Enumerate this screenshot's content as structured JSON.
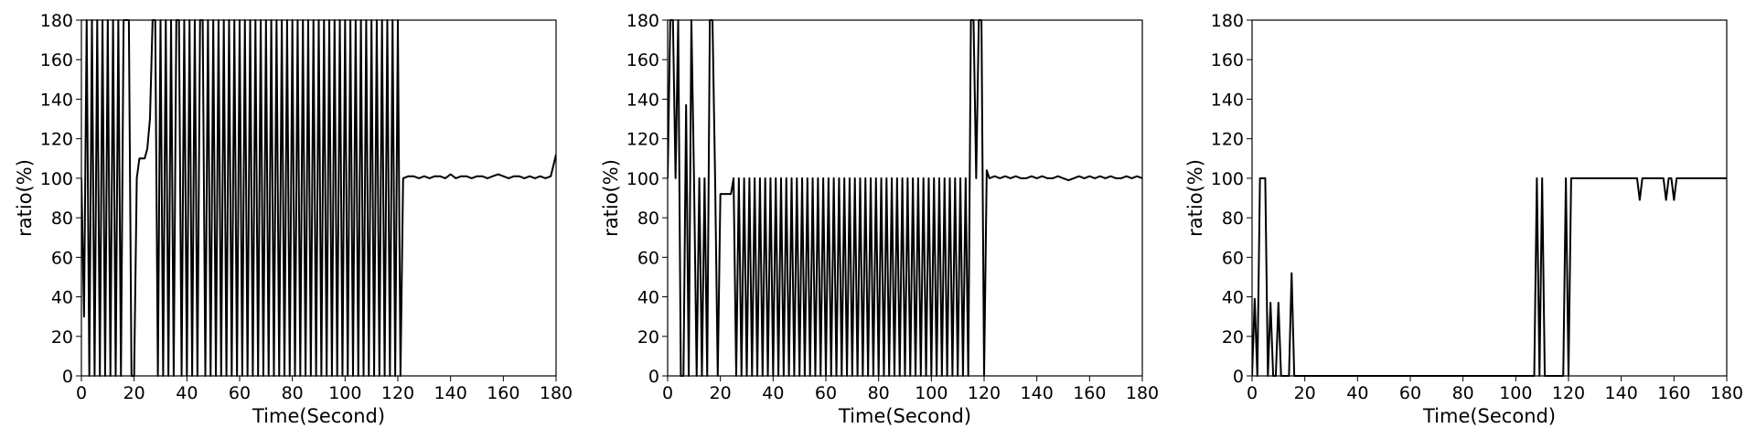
{
  "chart_data": [
    {
      "type": "line",
      "xlabel": "Time(Second)",
      "ylabel": "ratio(%)",
      "x": [
        0,
        1,
        2,
        3,
        4,
        5,
        6,
        7,
        8,
        9,
        10,
        11,
        12,
        13,
        14,
        15,
        16,
        17,
        18,
        19,
        20,
        21,
        22,
        23,
        24,
        25,
        26,
        27,
        28,
        29,
        30,
        31,
        32,
        33,
        34,
        35,
        36,
        37,
        38,
        39,
        40,
        41,
        42,
        43,
        44,
        45,
        46,
        47,
        48,
        49,
        50,
        51,
        52,
        53,
        54,
        55,
        56,
        57,
        58,
        59,
        60,
        61,
        62,
        63,
        64,
        65,
        66,
        67,
        68,
        69,
        70,
        71,
        72,
        73,
        74,
        75,
        76,
        77,
        78,
        79,
        80,
        81,
        82,
        83,
        84,
        85,
        86,
        87,
        88,
        89,
        90,
        91,
        92,
        93,
        94,
        95,
        96,
        97,
        98,
        99,
        100,
        101,
        102,
        103,
        104,
        105,
        106,
        107,
        108,
        109,
        110,
        111,
        112,
        113,
        114,
        115,
        116,
        117,
        118,
        119,
        120,
        121,
        122,
        124,
        126,
        128,
        130,
        132,
        134,
        136,
        138,
        140,
        142,
        144,
        146,
        148,
        150,
        152,
        154,
        156,
        158,
        160,
        162,
        164,
        166,
        168,
        170,
        172,
        174,
        176,
        178,
        180
      ],
      "values": [
        100,
        30,
        180,
        0,
        180,
        0,
        180,
        0,
        180,
        0,
        180,
        0,
        180,
        0,
        180,
        0,
        180,
        180,
        180,
        0,
        0,
        100,
        110,
        110,
        110,
        115,
        130,
        180,
        180,
        0,
        180,
        0,
        180,
        0,
        180,
        0,
        180,
        180,
        0,
        180,
        0,
        180,
        0,
        180,
        0,
        180,
        180,
        0,
        180,
        0,
        180,
        0,
        180,
        0,
        180,
        0,
        180,
        0,
        180,
        0,
        180,
        0,
        180,
        0,
        180,
        0,
        180,
        0,
        180,
        0,
        180,
        0,
        180,
        0,
        180,
        0,
        180,
        0,
        180,
        0,
        180,
        0,
        180,
        0,
        180,
        0,
        180,
        0,
        180,
        0,
        180,
        0,
        180,
        0,
        180,
        0,
        180,
        0,
        180,
        0,
        180,
        0,
        180,
        0,
        180,
        0,
        180,
        0,
        180,
        0,
        180,
        0,
        180,
        0,
        180,
        0,
        180,
        0,
        180,
        0,
        180,
        0,
        100,
        101,
        101,
        100,
        101,
        100,
        101,
        101,
        100,
        102,
        100,
        101,
        101,
        100,
        101,
        101,
        100,
        101,
        102,
        101,
        100,
        101,
        101,
        100,
        101,
        100,
        101,
        100,
        101,
        112
      ],
      "color": "#000000",
      "xlim": [
        0,
        180
      ],
      "ylim": [
        0,
        180
      ],
      "xticks": [
        0,
        20,
        40,
        60,
        80,
        100,
        120,
        140,
        160,
        180
      ],
      "yticks": [
        0,
        20,
        40,
        60,
        80,
        100,
        120,
        140,
        160,
        180
      ]
    },
    {
      "type": "line",
      "xlabel": "Time(Second)",
      "ylabel": "ratio(%)",
      "x": [
        0,
        1,
        2,
        3,
        4,
        5,
        6,
        7,
        8,
        9,
        10,
        11,
        12,
        13,
        14,
        15,
        16,
        17,
        18,
        19,
        20,
        21,
        22,
        23,
        24,
        25,
        26,
        27,
        28,
        29,
        30,
        31,
        32,
        33,
        34,
        35,
        36,
        37,
        38,
        39,
        40,
        41,
        42,
        43,
        44,
        45,
        46,
        47,
        48,
        49,
        50,
        51,
        52,
        53,
        54,
        55,
        56,
        57,
        58,
        59,
        60,
        61,
        62,
        63,
        64,
        65,
        66,
        67,
        68,
        69,
        70,
        71,
        72,
        73,
        74,
        75,
        76,
        77,
        78,
        79,
        80,
        81,
        82,
        83,
        84,
        85,
        86,
        87,
        88,
        89,
        90,
        91,
        92,
        93,
        94,
        95,
        96,
        97,
        98,
        99,
        100,
        101,
        102,
        103,
        104,
        105,
        106,
        107,
        108,
        109,
        110,
        111,
        112,
        113,
        114,
        115,
        116,
        117,
        118,
        119,
        120,
        121,
        122,
        124,
        126,
        128,
        130,
        132,
        134,
        136,
        138,
        140,
        142,
        144,
        146,
        148,
        150,
        152,
        154,
        156,
        158,
        160,
        162,
        164,
        166,
        168,
        170,
        172,
        174,
        176,
        178,
        180
      ],
      "values": [
        100,
        180,
        180,
        100,
        180,
        0,
        0,
        137,
        0,
        180,
        100,
        0,
        100,
        0,
        100,
        0,
        180,
        180,
        100,
        0,
        92,
        92,
        92,
        92,
        92,
        100,
        0,
        100,
        0,
        100,
        0,
        100,
        0,
        100,
        0,
        100,
        0,
        100,
        0,
        100,
        0,
        100,
        0,
        100,
        0,
        100,
        0,
        100,
        0,
        100,
        0,
        100,
        0,
        100,
        0,
        100,
        0,
        100,
        0,
        100,
        0,
        100,
        0,
        100,
        0,
        100,
        0,
        100,
        0,
        100,
        0,
        100,
        0,
        100,
        0,
        100,
        0,
        100,
        0,
        100,
        0,
        100,
        0,
        100,
        0,
        100,
        0,
        100,
        0,
        100,
        0,
        100,
        0,
        100,
        0,
        100,
        0,
        100,
        0,
        100,
        0,
        100,
        0,
        100,
        0,
        100,
        0,
        100,
        0,
        100,
        0,
        100,
        0,
        100,
        0,
        180,
        180,
        100,
        180,
        180,
        0,
        104,
        100,
        101,
        100,
        101,
        100,
        101,
        100,
        100,
        101,
        100,
        101,
        100,
        100,
        101,
        100,
        99,
        100,
        101,
        100,
        101,
        100,
        101,
        100,
        101,
        100,
        100,
        101,
        100,
        101,
        100
      ],
      "color": "#000000",
      "xlim": [
        0,
        180
      ],
      "ylim": [
        0,
        180
      ],
      "xticks": [
        0,
        20,
        40,
        60,
        80,
        100,
        120,
        140,
        160,
        180
      ],
      "yticks": [
        0,
        20,
        40,
        60,
        80,
        100,
        120,
        140,
        160,
        180
      ]
    },
    {
      "type": "line",
      "xlabel": "Time(Second)",
      "ylabel": "ratio(%)",
      "x": [
        0,
        1,
        2,
        3,
        4,
        5,
        6,
        7,
        8,
        9,
        10,
        11,
        12,
        13,
        14,
        15,
        16,
        107,
        108,
        109,
        110,
        111,
        112,
        113,
        114,
        115,
        116,
        117,
        118,
        119,
        120,
        121,
        122,
        130,
        140,
        146,
        147,
        148,
        156,
        157,
        158,
        159,
        160,
        161,
        162,
        170,
        180
      ],
      "values": [
        0,
        39,
        0,
        100,
        100,
        100,
        0,
        37,
        0,
        0,
        37,
        0,
        0,
        0,
        0,
        52,
        0,
        0,
        100,
        0,
        100,
        0,
        0,
        0,
        0,
        0,
        0,
        0,
        0,
        100,
        0,
        100,
        100,
        100,
        100,
        100,
        89,
        100,
        100,
        89,
        100,
        100,
        89,
        100,
        100,
        100,
        100
      ],
      "color": "#000000",
      "xlim": [
        0,
        180
      ],
      "ylim": [
        0,
        180
      ],
      "xticks": [
        0,
        20,
        40,
        60,
        80,
        100,
        120,
        140,
        160,
        180
      ],
      "yticks": [
        0,
        20,
        40,
        60,
        80,
        100,
        120,
        140,
        160,
        180
      ]
    }
  ]
}
